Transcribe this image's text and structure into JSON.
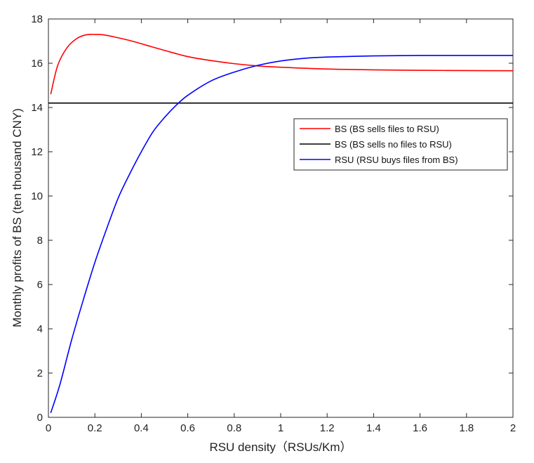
{
  "chart_data": {
    "type": "line",
    "title": "",
    "xlabel": "RSU density（RSUs/Km）",
    "ylabel": "Monthly profits of BS (ten thousand CNY)",
    "xlim": [
      0,
      2
    ],
    "ylim": [
      0,
      18
    ],
    "xticks": [
      0,
      0.2,
      0.4,
      0.6,
      0.8,
      1,
      1.2,
      1.4,
      1.6,
      1.8,
      2
    ],
    "xtick_labels": [
      "0",
      "0.2",
      "0.4",
      "0.6",
      "0.8",
      "1",
      "1.2",
      "1.4",
      "1.6",
      "1.8",
      "2"
    ],
    "yticks": [
      0,
      2,
      4,
      6,
      8,
      10,
      12,
      14,
      16,
      18
    ],
    "ytick_labels": [
      "0",
      "2",
      "4",
      "6",
      "8",
      "10",
      "12",
      "14",
      "16",
      "18"
    ],
    "grid": false,
    "legend_position": "top-right",
    "series": [
      {
        "name": "BS (BS sells files to RSU)",
        "color": "#ff0000",
        "x": [
          0.01,
          0.04,
          0.08,
          0.12,
          0.16,
          0.2,
          0.24,
          0.3,
          0.36,
          0.42,
          0.5,
          0.6,
          0.7,
          0.8,
          0.9,
          1.0,
          1.2,
          1.4,
          1.6,
          1.8,
          2.0
        ],
        "y": [
          14.6,
          15.9,
          16.7,
          17.1,
          17.28,
          17.3,
          17.28,
          17.15,
          17.0,
          16.82,
          16.58,
          16.3,
          16.12,
          15.98,
          15.88,
          15.82,
          15.74,
          15.7,
          15.68,
          15.67,
          15.66
        ]
      },
      {
        "name": "BS (BS sells no files to RSU)",
        "color": "#000000",
        "x": [
          0,
          2
        ],
        "y": [
          14.2,
          14.2
        ]
      },
      {
        "name": "RSU (RSU buys files from BS)",
        "color": "#0000ff",
        "x": [
          0.01,
          0.05,
          0.1,
          0.15,
          0.2,
          0.25,
          0.3,
          0.35,
          0.4,
          0.45,
          0.5,
          0.55,
          0.6,
          0.7,
          0.8,
          0.9,
          1.0,
          1.1,
          1.2,
          1.4,
          1.6,
          1.8,
          2.0
        ],
        "y": [
          0.2,
          1.5,
          3.5,
          5.3,
          7.0,
          8.5,
          9.9,
          11.0,
          12.0,
          12.9,
          13.55,
          14.1,
          14.55,
          15.2,
          15.6,
          15.9,
          16.1,
          16.22,
          16.28,
          16.33,
          16.35,
          16.35,
          16.35
        ]
      }
    ]
  }
}
